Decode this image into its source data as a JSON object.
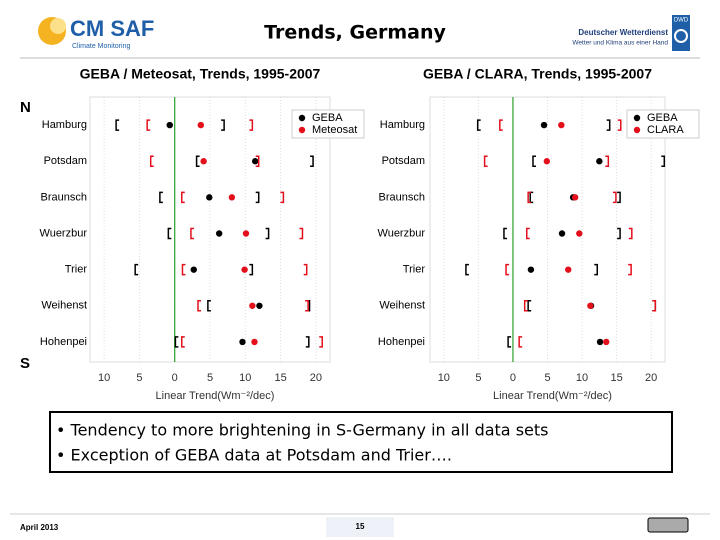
{
  "header": {
    "logo": "CM SAF",
    "logo_sub": "Climate Monitoring",
    "title": "Trends, Germany",
    "dwd_name": "Deutscher Wetterdienst",
    "dwd_slogan": "Wetter und Klima aus einer Hand",
    "dwd_badge": "DWD"
  },
  "side_labels": [
    "N",
    "S"
  ],
  "chart_data": [
    {
      "type": "dotplot",
      "title": "GEBA / Meteosat, Trends, 1995-2007",
      "categories": [
        "Hamburg",
        "Potsdam",
        "Braunsch",
        "Wuerzbur",
        "Trier",
        "Weihenst",
        "Hohenpei"
      ],
      "series": [
        {
          "name": "GEBA",
          "color": "#000000",
          "values": [
            -0.7,
            11.4,
            4.9,
            6.3,
            2.7,
            12,
            9.6
          ],
          "lower": [
            -8.3,
            3.1,
            -2.1,
            -0.9,
            -5.6,
            4.7,
            0.1
          ],
          "upper": [
            7,
            19.6,
            11.9,
            13.3,
            11,
            19.1,
            19
          ]
        },
        {
          "name": "Meteosat",
          "color": "#e3101c",
          "values": [
            3.7,
            4.1,
            8.1,
            10.1,
            9.9,
            11,
            11.3
          ],
          "lower": [
            -3.9,
            -3.4,
            1,
            2.3,
            1.1,
            3.3,
            1
          ],
          "upper": [
            11,
            11.9,
            15.4,
            18.1,
            18.7,
            18.9,
            20.9
          ]
        }
      ],
      "xlim": [
        -12,
        22
      ],
      "xticks": [
        {
          "value": -10,
          "label": "10"
        },
        {
          "value": -5,
          "label": "5"
        },
        0,
        5,
        10,
        15,
        20
      ],
      "xlabel": "Linear Trend(Wm⁻²/dec)",
      "grid": true,
      "legend": "top-right"
    },
    {
      "type": "dotplot",
      "title": "GEBA / CLARA, Trends, 1995-2007",
      "categories": [
        "Hamburg",
        "Potsdam",
        "Braunsch",
        "Wuerzbur",
        "Trier",
        "Weihenst",
        "Hohenpei"
      ],
      "series": [
        {
          "name": "GEBA",
          "color": "#000000",
          "values": [
            4.5,
            12.5,
            8.7,
            7.1,
            2.6,
            11.3,
            12.6
          ],
          "lower": [
            -5.1,
            2.9,
            2.5,
            -1.3,
            -6.8,
            2.2,
            -0.7
          ],
          "upper": [
            14,
            21.9,
            15.5,
            15.5,
            12.2,
            20.6,
            null
          ]
        },
        {
          "name": "CLARA",
          "color": "#e3101c",
          "values": [
            7,
            4.9,
            9,
            9.6,
            8,
            11.2,
            13.5
          ],
          "lower": [
            -1.9,
            -4.1,
            2.2,
            2,
            -1,
            1.7,
            0.9
          ],
          "upper": [
            15.6,
            13.8,
            14.9,
            17.2,
            17.1,
            20.6,
            null
          ]
        }
      ],
      "xlim": [
        -12,
        22
      ],
      "xticks": [
        {
          "value": -10,
          "label": "10"
        },
        {
          "value": -5,
          "label": "5"
        },
        0,
        5,
        10,
        15,
        20
      ],
      "xlabel": "Linear Trend(Wm⁻²/dec)",
      "grid": true,
      "legend": "top-right"
    }
  ],
  "bullets": [
    "• Tendency to more brightening in S-Germany in all data sets",
    "• Exception of GEBA data at Potsdam and Trier…."
  ],
  "footer": {
    "date": "April 2013",
    "page": "15"
  }
}
